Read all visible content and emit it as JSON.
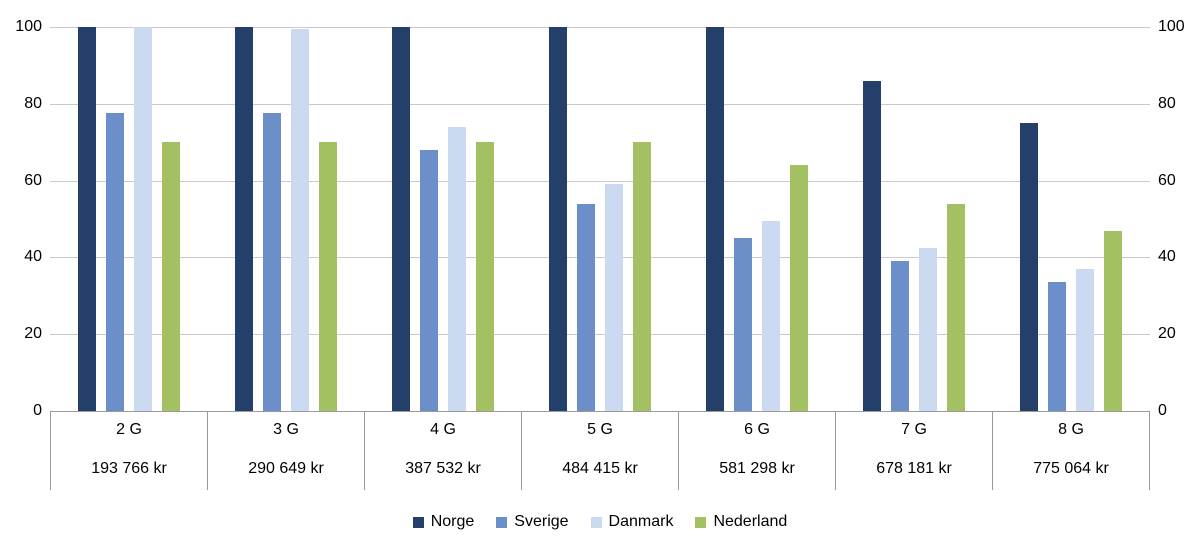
{
  "chart_data": {
    "type": "bar",
    "categories": [
      "2 G",
      "3 G",
      "4 G",
      "5 G",
      "6 G",
      "7 G",
      "8 G"
    ],
    "category_sublabels": [
      "193 766 kr",
      "290 649 kr",
      "387 532 kr",
      "484 415 kr",
      "581 298 kr",
      "678 181 kr",
      "775 064 kr"
    ],
    "series": [
      {
        "name": "Norge",
        "color": "#243F6A",
        "values": [
          100,
          100,
          100,
          100,
          100,
          86,
          75
        ]
      },
      {
        "name": "Sverige",
        "color": "#6D8FC9",
        "values": [
          77.5,
          77.5,
          68,
          54,
          45,
          39,
          33.5
        ]
      },
      {
        "name": "Danmark",
        "color": "#CBD9F1",
        "values": [
          100,
          99.5,
          74,
          59,
          49.5,
          42.5,
          37
        ]
      },
      {
        "name": "Nederland",
        "color": "#A3C162",
        "values": [
          70,
          70,
          70,
          70,
          64,
          54,
          47
        ]
      }
    ],
    "y_ticks": [
      0,
      20,
      40,
      60,
      80,
      100
    ],
    "ylim": [
      0,
      100
    ],
    "grid": true,
    "y_axis_sides": [
      "left",
      "right"
    ],
    "legend_position": "bottom",
    "colors": {
      "gridline": "#c9c9c9",
      "axis_line": "#9a9a9a",
      "text": "#000000",
      "background": "#ffffff"
    }
  }
}
